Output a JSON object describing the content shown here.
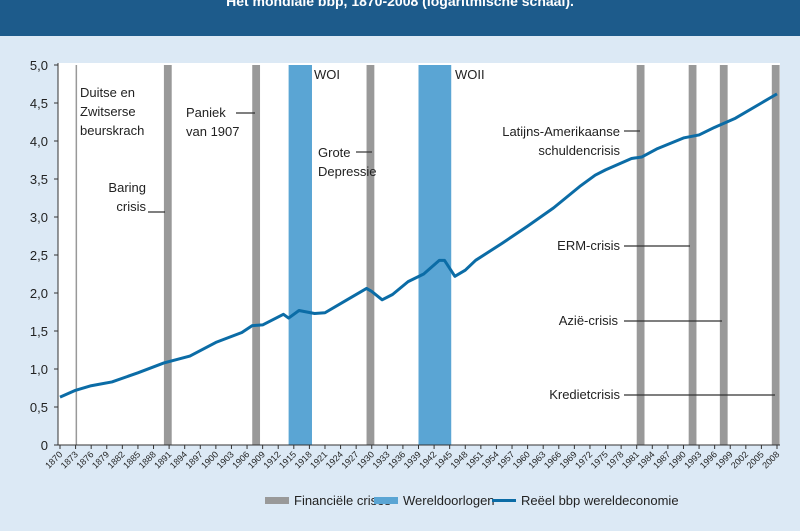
{
  "chart_data": {
    "type": "line",
    "title": "Het mondiale bbp, 1870-2008 (logaritmische schaal).",
    "x": [
      1870,
      1873,
      1876,
      1880,
      1885,
      1890,
      1895,
      1900,
      1905,
      1907,
      1909,
      1913,
      1914,
      1916,
      1919,
      1921,
      1925,
      1929,
      1930,
      1932,
      1934,
      1937,
      1940,
      1943,
      1944,
      1946,
      1948,
      1950,
      1955,
      1960,
      1965,
      1970,
      1973,
      1975,
      1980,
      1982,
      1985,
      1990,
      1993,
      1996,
      2000,
      2005,
      2008
    ],
    "series": [
      {
        "name": "Reëel bbp wereldeconomie",
        "color": "#0b6ca6",
        "values": [
          0.63,
          0.72,
          0.78,
          0.83,
          0.95,
          1.08,
          1.17,
          1.35,
          1.48,
          1.57,
          1.58,
          1.72,
          1.67,
          1.77,
          1.73,
          1.74,
          1.9,
          2.06,
          2.02,
          1.91,
          1.98,
          2.15,
          2.25,
          2.43,
          2.43,
          2.22,
          2.3,
          2.43,
          2.65,
          2.88,
          3.12,
          3.4,
          3.55,
          3.62,
          3.77,
          3.79,
          3.9,
          4.04,
          4.08,
          4.18,
          4.3,
          4.5,
          4.62
        ]
      }
    ],
    "bands": [
      {
        "name": "Financiële crises",
        "color": "#999999",
        "periods": [
          [
            1873,
            1873.2
          ],
          [
            1890,
            1891.5
          ],
          [
            1907,
            1908.5
          ],
          [
            1929,
            1930.5
          ],
          [
            1981,
            1982.5
          ],
          [
            1991,
            1992.5
          ],
          [
            1997,
            1998.5
          ],
          [
            2007,
            2008.5
          ]
        ]
      },
      {
        "name": "Wereldoorlogen",
        "color": "#5aa5d4",
        "periods": [
          [
            1914,
            1918.5
          ],
          [
            1939,
            1945.3
          ]
        ]
      }
    ],
    "annotations": [
      {
        "lines": [
          "Duitse en",
          "Zwitserse",
          "beurskrach"
        ]
      },
      {
        "lines": [
          "Baring",
          "crisis"
        ]
      },
      {
        "lines": [
          "Paniek",
          "van 1907"
        ]
      },
      {
        "lines": [
          "Grote",
          "Depressie"
        ]
      },
      {
        "lines": [
          "WOI"
        ]
      },
      {
        "lines": [
          "WOII"
        ]
      },
      {
        "lines": [
          "Latijns-Amerikaanse",
          "schuldencrisis"
        ]
      },
      {
        "lines": [
          "ERM-crisis"
        ]
      },
      {
        "lines": [
          "Azië-crisis"
        ]
      },
      {
        "lines": [
          "Kredietcrisis"
        ]
      }
    ],
    "xlim": [
      1870,
      2008
    ],
    "xticks": [
      1870,
      1873,
      1876,
      1879,
      1882,
      1885,
      1888,
      1891,
      1894,
      1897,
      1900,
      1903,
      1906,
      1909,
      1912,
      1915,
      1918,
      1921,
      1924,
      1927,
      1930,
      1933,
      1936,
      1939,
      1942,
      1945,
      1948,
      1951,
      1954,
      1957,
      1960,
      1963,
      1966,
      1969,
      1972,
      1975,
      1978,
      1981,
      1984,
      1987,
      1990,
      1993,
      1996,
      1999,
      2002,
      2005,
      2008
    ],
    "ylim": [
      0,
      5
    ],
    "yticks": [
      0,
      {
        "value": 0.5,
        "label": "0,5"
      },
      {
        "value": 1,
        "label": "1,0"
      },
      {
        "value": 1.5,
        "label": "1,5"
      },
      {
        "value": 2,
        "label": "2,0"
      },
      {
        "value": 2.5,
        "label": "2,5"
      },
      {
        "value": 3,
        "label": "3,0"
      },
      {
        "value": 3.5,
        "label": "3,5"
      },
      {
        "value": 4,
        "label": "4,0"
      },
      {
        "value": 4.5,
        "label": "4,5"
      },
      {
        "value": 5,
        "label": "5,0"
      }
    ],
    "grid": false
  }
}
